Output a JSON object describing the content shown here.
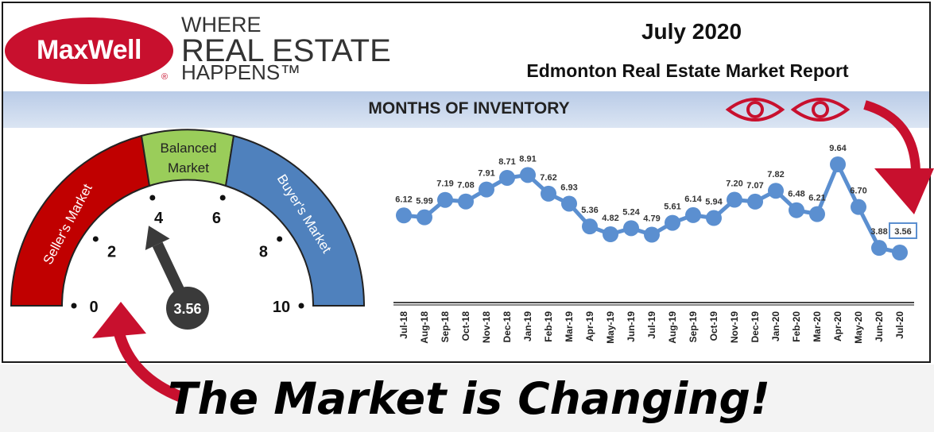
{
  "brand": {
    "name": "MaxWell",
    "registered": "®",
    "tagline_1": "WHERE",
    "tagline_2": "REAL ESTATE",
    "tagline_3": "HAPPENS™"
  },
  "report": {
    "date": "July 2020",
    "title": "Edmonton Real Estate Market Report"
  },
  "band_title": "MONTHS OF INVENTORY",
  "gauge": {
    "zones": [
      {
        "label": "Seller's Market",
        "color": "#c00000"
      },
      {
        "label_line1": "Balanced",
        "label_line2": "Market",
        "color": "#9acd5a"
      },
      {
        "label": "Buyer's Market",
        "color": "#4f81bd"
      }
    ],
    "ticks": [
      "0",
      "2",
      "4",
      "6",
      "8",
      "10"
    ],
    "value": 3.56,
    "value_label": "3.56"
  },
  "slogan": "The Market is Changing!",
  "colors": {
    "brand_red": "#c8102e",
    "line": "#5b8fd0",
    "band": "#c6d6ee"
  },
  "icons": [
    "eye-icon",
    "eye-icon",
    "curved-arrow-icon",
    "curved-arrow-icon"
  ],
  "chart_data": {
    "type": "line",
    "categories": [
      "Jul-18",
      "Aug-18",
      "Sep-18",
      "Oct-18",
      "Nov-18",
      "Dec-18",
      "Jan-19",
      "Feb-19",
      "Mar-19",
      "Apr-19",
      "May-19",
      "Jun-19",
      "Jul-19",
      "Aug-19",
      "Sep-19",
      "Oct-19",
      "Nov-19",
      "Dec-19",
      "Jan-20",
      "Feb-20",
      "Mar-20",
      "Apr-20",
      "May-20",
      "Jun-20",
      "Jul-20"
    ],
    "values": [
      6.12,
      5.99,
      7.19,
      7.08,
      7.91,
      8.71,
      8.91,
      7.62,
      6.93,
      5.36,
      4.82,
      5.24,
      4.79,
      5.61,
      6.14,
      5.94,
      7.2,
      7.07,
      7.82,
      6.48,
      6.21,
      9.64,
      6.7,
      3.88,
      3.56
    ],
    "data_labels": [
      "6.12",
      "5.99",
      "7.19",
      "7.08",
      "7.91",
      "8.71",
      "8.91",
      "7.62",
      "6.93",
      "5.36",
      "4.82",
      "5.24",
      "4.79",
      "5.61",
      "6.14",
      "5.94",
      "7.20",
      "7.07",
      "7.82",
      "6.48",
      "6.21",
      "9.64",
      "6.70",
      "3.88",
      "3.56"
    ],
    "highlight_last": true,
    "grid": false
  }
}
